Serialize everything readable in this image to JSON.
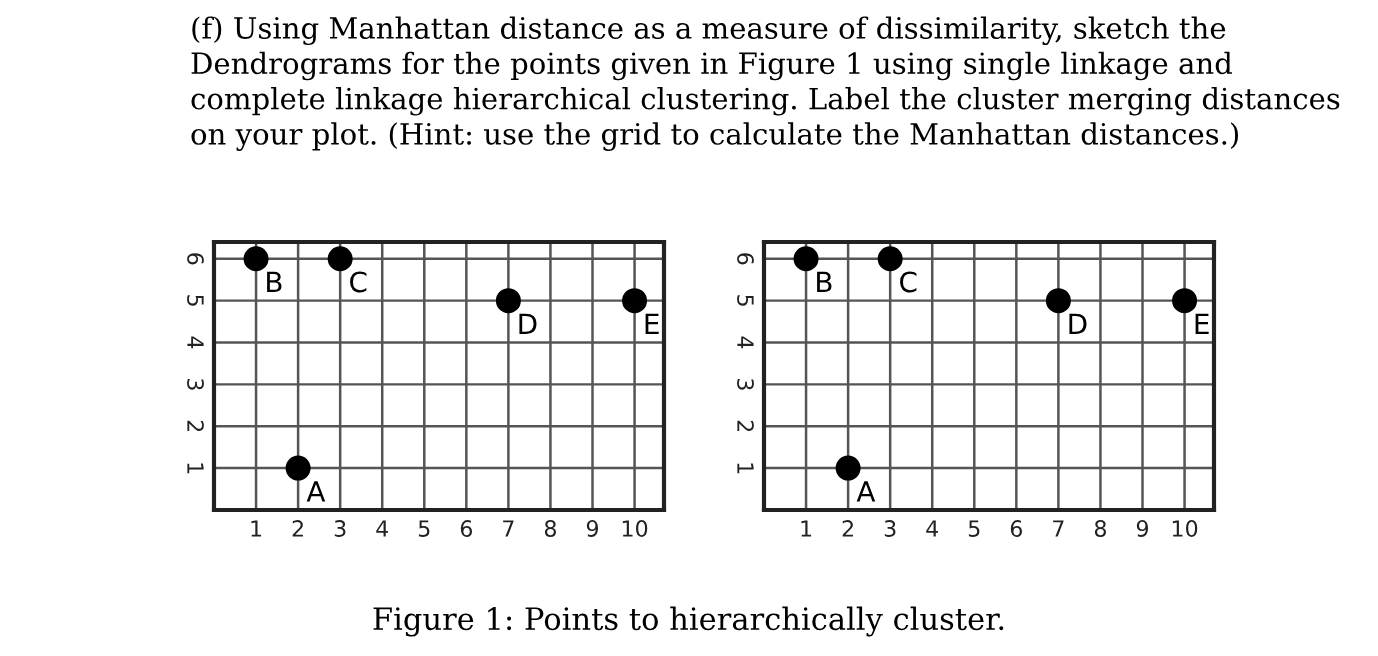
{
  "chart_data": [
    {
      "type": "scatter",
      "title": "(f) Using Manhattan distance as a measure of dissimilarity, sketch the Dendrograms for the points given in Figure 1 using single linkage and complete linkage hierarchical clustering. Label the cluster merging distances on your plot. (Hint: use the grid to calculate the Manhattan distances.)",
      "series": [
        {
          "color": "#000000",
          "x": [
            2,
            1,
            3,
            7,
            10
          ],
          "values": [
            1,
            6,
            6,
            5,
            5
          ]
        }
      ],
      "annotations": [
        {
          "text": "A",
          "x": 2,
          "y": 1
        },
        {
          "text": "B",
          "x": 1,
          "y": 6
        },
        {
          "text": "C",
          "x": 3,
          "y": 6
        },
        {
          "text": "D",
          "x": 7,
          "y": 5
        },
        {
          "text": "E",
          "x": 10,
          "y": 5
        }
      ],
      "xlim": [
        0,
        10.7
      ],
      "ylim": [
        0,
        6.4
      ],
      "xticks": [
        1,
        2,
        3,
        4,
        5,
        6,
        7,
        8,
        9,
        10
      ],
      "yticks": [
        1,
        2,
        3,
        4,
        5,
        6
      ],
      "grid": true,
      "marker": "circle"
    },
    {
      "type": "scatter",
      "series": [
        {
          "color": "#000000",
          "x": [
            2,
            1,
            3,
            7,
            10
          ],
          "values": [
            1,
            6,
            6,
            5,
            5
          ]
        }
      ],
      "annotations": [
        {
          "text": "A",
          "x": 2,
          "y": 1
        },
        {
          "text": "B",
          "x": 1,
          "y": 6
        },
        {
          "text": "C",
          "x": 3,
          "y": 6
        },
        {
          "text": "D",
          "x": 7,
          "y": 5
        },
        {
          "text": "E",
          "x": 10,
          "y": 5
        },
        "Figure 1: Points to hierarchically cluster."
      ],
      "xlim": [
        0,
        10.7
      ],
      "ylim": [
        0,
        6.4
      ],
      "xticks": [
        1,
        2,
        3,
        4,
        5,
        6,
        7,
        8,
        9,
        10
      ],
      "yticks": [
        1,
        2,
        3,
        4,
        5,
        6
      ],
      "grid": true,
      "marker": "circle"
    }
  ]
}
